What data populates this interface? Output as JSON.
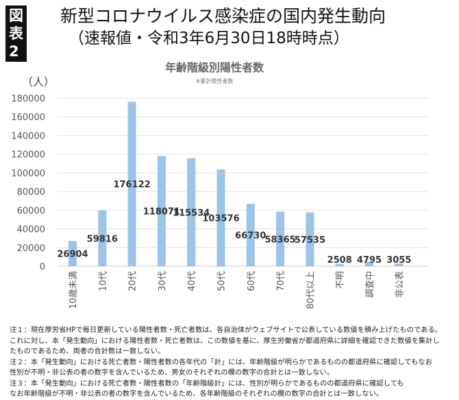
{
  "header": {
    "badge": "図表2",
    "title": "新型コロナウイルス感染症の国内発生動向",
    "subtitle": "（速報値・令和3年6月30日18時時点）"
  },
  "chart_data": {
    "type": "bar",
    "title": "年齢階級別陽性者数",
    "subtitle": "※累計陽性者数",
    "ylabel": "（人）",
    "categories": [
      "10歳未満",
      "10代",
      "20代",
      "30代",
      "40代",
      "50代",
      "60代",
      "70代",
      "80代以上",
      "不明",
      "調査中",
      "非公表"
    ],
    "values": [
      26904,
      59816,
      176122,
      118071,
      115534,
      103576,
      66730,
      58365,
      57535,
      2508,
      4795,
      3055
    ],
    "yticks": [
      0,
      20000,
      40000,
      60000,
      80000,
      100000,
      120000,
      140000,
      160000,
      180000
    ],
    "ylim": [
      0,
      180000
    ],
    "grid": true,
    "bar_color": "#9dc3e6"
  },
  "notes": [
    "注１：現在厚労省HPで毎日更新している陽性者数・死亡者数は、各自治体がウェブサイトで公表している数値を積み上げたものである。",
    "これに対し、本「発生動向」における陽性者数・死亡者数は、この数値を基に、厚生労働省が都道府県に詳細を確認できた数値を集計し",
    "たものであるため、両者の合計数は一致しない。",
    "注２：本「発生動向」における死亡者数・陽性者数の各年代の「計」には、年齢階級が明らかであるものの都道府県に確認してもなお",
    "性別が不明・非公表の者の数字を含んでいるため、男女のそれぞれの欄の数字の合計とは一致しない。",
    "注３：本「発生動向」における死亡者数・陽性者数の「年齢階級計」には、性別が明らかであるものの都道府県に確認しても",
    "なお年齢階級が不明・非公表の者の数字を含んでいるため、各年齢階級のそれぞれの欄の数字の合計とは一致しない。"
  ]
}
